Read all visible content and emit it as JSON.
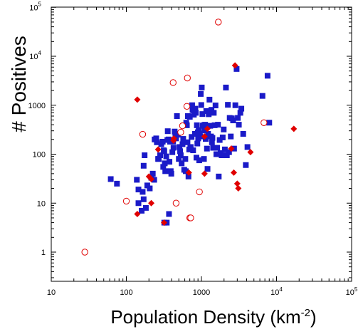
{
  "chart_data": {
    "type": "scatter",
    "xlabel": "Population Density (km",
    "xlabel_superscript": "-2",
    "xlabel_close": ")",
    "ylabel": "# Positives",
    "x_scale": "log",
    "y_scale": "log",
    "xlim": [
      10,
      100000
    ],
    "ylim": [
      0.5,
      100000
    ],
    "grid": false,
    "x_ticks": [
      {
        "label": "10",
        "value": 10
      },
      {
        "label": "100",
        "value": 100
      },
      {
        "label": "1000",
        "value": 1000
      },
      {
        "label": "10",
        "sup": "4",
        "value": 10000
      },
      {
        "label": "10",
        "sup": "5",
        "value": 100000
      }
    ],
    "y_ticks": [
      {
        "label": "1",
        "value": 1
      },
      {
        "label": "10",
        "value": 10
      },
      {
        "label": "100",
        "value": 100
      },
      {
        "label": "1000",
        "value": 1000
      },
      {
        "label": "10",
        "sup": "4",
        "value": 10000
      },
      {
        "label": "10",
        "sup": "5",
        "value": 100000
      }
    ],
    "colors": {
      "squares": "#1a1ac8",
      "diamonds": "#e00000",
      "circles": "#e00000"
    },
    "series": [
      {
        "marker": "square",
        "color": "#1a1ac8",
        "points": [
          [
            62,
            31
          ],
          [
            75,
            25
          ],
          [
            138,
            30
          ],
          [
            145,
            10
          ],
          [
            160,
            7
          ],
          [
            170,
            12
          ],
          [
            182,
            8
          ],
          [
            145,
            19
          ],
          [
            165,
            17
          ],
          [
            170,
            58
          ],
          [
            175,
            95
          ],
          [
            190,
            23
          ],
          [
            205,
            20
          ],
          [
            215,
            33
          ],
          [
            225,
            40
          ],
          [
            235,
            30
          ],
          [
            238,
            200
          ],
          [
            250,
            210
          ],
          [
            255,
            175
          ],
          [
            265,
            80
          ],
          [
            270,
            80
          ],
          [
            282,
            95
          ],
          [
            292,
            160
          ],
          [
            305,
            180
          ],
          [
            310,
            55
          ],
          [
            315,
            120
          ],
          [
            320,
            115
          ],
          [
            325,
            65
          ],
          [
            330,
            45
          ],
          [
            340,
            90
          ],
          [
            352,
            195
          ],
          [
            356,
            295
          ],
          [
            366,
            200
          ],
          [
            375,
            70
          ],
          [
            382,
            180
          ],
          [
            390,
            45
          ],
          [
            397,
            40
          ],
          [
            410,
            110
          ],
          [
            420,
            180
          ],
          [
            425,
            135
          ],
          [
            440,
            290
          ],
          [
            450,
            260
          ],
          [
            460,
            210
          ],
          [
            472,
            600
          ],
          [
            485,
            250
          ],
          [
            500,
            80
          ],
          [
            510,
            140
          ],
          [
            520,
            115
          ],
          [
            530,
            95
          ],
          [
            545,
            65
          ],
          [
            560,
            160
          ],
          [
            572,
            205
          ],
          [
            590,
            48
          ],
          [
            610,
            80
          ],
          [
            618,
            45
          ],
          [
            628,
            440
          ],
          [
            640,
            390
          ],
          [
            652,
            175
          ],
          [
            660,
            600
          ],
          [
            672,
            35
          ],
          [
            688,
            125
          ],
          [
            700,
            580
          ],
          [
            712,
            135
          ],
          [
            720,
            140
          ],
          [
            740,
            225
          ],
          [
            752,
            1000
          ],
          [
            762,
            800
          ],
          [
            775,
            120
          ],
          [
            792,
            640
          ],
          [
            820,
            260
          ],
          [
            830,
            850
          ],
          [
            842,
            700
          ],
          [
            858,
            85
          ],
          [
            870,
            390
          ],
          [
            882,
            165
          ],
          [
            895,
            280
          ],
          [
            905,
            210
          ],
          [
            920,
            310
          ],
          [
            935,
            75
          ],
          [
            950,
            265
          ],
          [
            965,
            230
          ],
          [
            980,
            1700
          ],
          [
            995,
            1010
          ],
          [
            1010,
            2300
          ],
          [
            1030,
            660
          ],
          [
            1045,
            380
          ],
          [
            1060,
            390
          ],
          [
            1080,
            80
          ],
          [
            1100,
            305
          ],
          [
            1120,
            400
          ],
          [
            1140,
            205
          ],
          [
            1160,
            760
          ],
          [
            1185,
            130
          ],
          [
            1205,
            50
          ],
          [
            1225,
            260
          ],
          [
            1250,
            655
          ],
          [
            1280,
            1300
          ],
          [
            1310,
            380
          ],
          [
            1340,
            230
          ],
          [
            1360,
            805
          ],
          [
            1380,
            175
          ],
          [
            1400,
            215
          ],
          [
            1430,
            135
          ],
          [
            1460,
            700
          ],
          [
            1500,
            390
          ],
          [
            1540,
            990
          ],
          [
            1580,
            100
          ],
          [
            1620,
            135
          ],
          [
            1660,
            400
          ],
          [
            1700,
            35
          ],
          [
            1750,
            195
          ],
          [
            1800,
            105
          ],
          [
            1860,
            95
          ],
          [
            1920,
            220
          ],
          [
            1980,
            320
          ],
          [
            2050,
            125
          ],
          [
            2120,
            2300
          ],
          [
            2180,
            95
          ],
          [
            2250,
            1020
          ],
          [
            2330,
            110
          ],
          [
            2380,
            550
          ],
          [
            2460,
            230
          ],
          [
            2540,
            540
          ],
          [
            2640,
            490
          ],
          [
            2720,
            130
          ],
          [
            2830,
            1000
          ],
          [
            2940,
            5500
          ],
          [
            3050,
            550
          ],
          [
            3150,
            400
          ],
          [
            3300,
            700
          ],
          [
            3400,
            850
          ],
          [
            3600,
            260
          ],
          [
            3900,
            60
          ],
          [
            4100,
            140
          ],
          [
            6500,
            1550
          ],
          [
            7600,
            4000
          ],
          [
            8000,
            440
          ],
          [
            320,
            4
          ],
          [
            345,
            4
          ],
          [
            370,
            6
          ]
        ]
      },
      {
        "marker": "diamond",
        "color": "#e00000",
        "points": [
          [
            140,
            1300
          ],
          [
            140,
            6
          ],
          [
            200,
            35
          ],
          [
            215,
            31
          ],
          [
            215,
            10
          ],
          [
            265,
            125
          ],
          [
            318,
            4
          ],
          [
            425,
            190
          ],
          [
            430,
            210
          ],
          [
            680,
            42
          ],
          [
            1100,
            230
          ],
          [
            1100,
            40
          ],
          [
            1200,
            330
          ],
          [
            2500,
            130
          ],
          [
            2700,
            42
          ],
          [
            2800,
            6500
          ],
          [
            3000,
            25
          ],
          [
            3100,
            20
          ],
          [
            4500,
            110
          ],
          [
            17000,
            330
          ]
        ]
      },
      {
        "marker": "circle",
        "color": "#e00000",
        "points": [
          [
            28,
            1
          ],
          [
            100,
            11
          ],
          [
            165,
            255
          ],
          [
            420,
            2900
          ],
          [
            460,
            10
          ],
          [
            530,
            280
          ],
          [
            560,
            380
          ],
          [
            640,
            950
          ],
          [
            650,
            3600
          ],
          [
            700,
            5
          ],
          [
            720,
            5
          ],
          [
            940,
            17
          ],
          [
            1680,
            50000
          ],
          [
            6800,
            440
          ]
        ]
      }
    ]
  }
}
